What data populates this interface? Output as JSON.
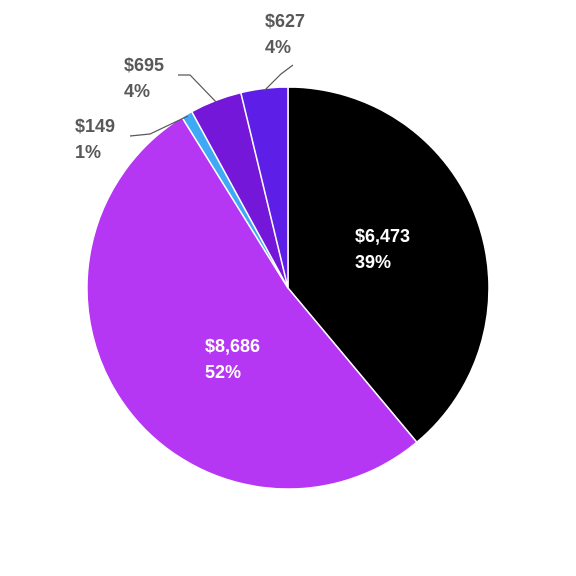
{
  "chart_data": {
    "type": "pie",
    "categories": [
      null,
      null,
      null,
      null,
      null
    ],
    "values": [
      6473,
      8686,
      149,
      695,
      627
    ],
    "value_labels": [
      "$6,473",
      "$8,686",
      "$149",
      "$695",
      "$627"
    ],
    "percentages": [
      39,
      52,
      1,
      4,
      4
    ],
    "percentage_labels": [
      "39%",
      "52%",
      "1%",
      "4%",
      "4%"
    ],
    "colors": [
      "#000000",
      "#b637f3",
      "#3fa9f5",
      "#7417d8",
      "#5d1fe8"
    ]
  }
}
